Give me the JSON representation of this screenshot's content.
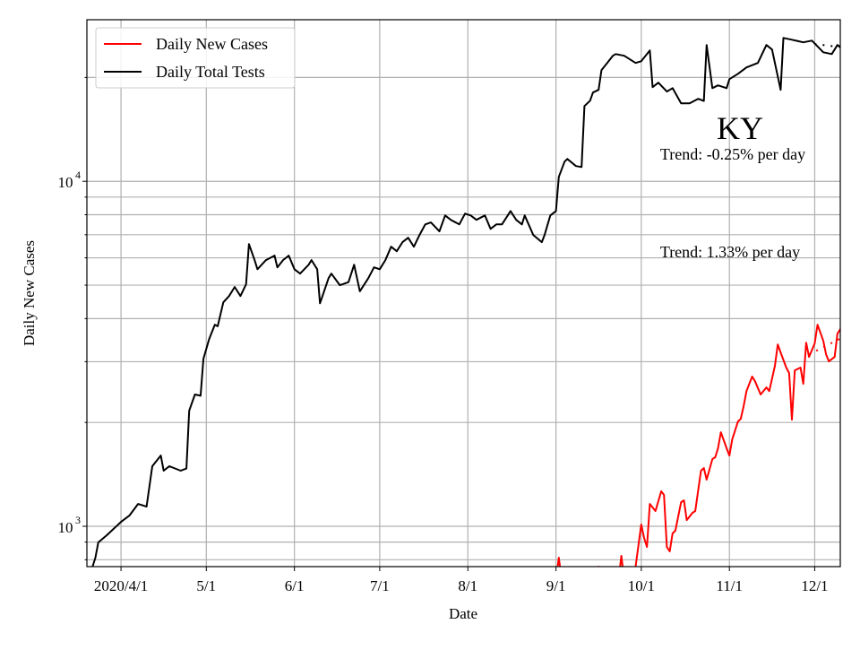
{
  "chart_data": {
    "type": "line",
    "title": "",
    "xlabel": "Date",
    "ylabel": "Daily New Cases",
    "yscale": "log",
    "xlim": [
      "2020-03-20",
      "2020-12-10"
    ],
    "ylim": [
      764,
      29400
    ],
    "grid": true,
    "legend_placement": "top-left",
    "x_ticks": [
      {
        "date": "2020-04-01",
        "label": "2020/4/1"
      },
      {
        "date": "2020-05-01",
        "label": "5/1"
      },
      {
        "date": "2020-06-01",
        "label": "6/1"
      },
      {
        "date": "2020-07-01",
        "label": "7/1"
      },
      {
        "date": "2020-08-01",
        "label": "8/1"
      },
      {
        "date": "2020-09-01",
        "label": "9/1"
      },
      {
        "date": "2020-10-01",
        "label": "10/1"
      },
      {
        "date": "2020-11-01",
        "label": "11/1"
      },
      {
        "date": "2020-12-01",
        "label": "12/1"
      }
    ],
    "y_major_ticks": [
      {
        "value": 1000,
        "base": "10",
        "exp": "3"
      },
      {
        "value": 10000,
        "base": "10",
        "exp": "4"
      }
    ],
    "y_minor_ticks": [
      800,
      900,
      2000,
      3000,
      4000,
      5000,
      6000,
      7000,
      8000,
      9000,
      20000
    ],
    "annotations": {
      "state": "KY",
      "trend_tests": "Trend: -0.25% per day",
      "trend_cases": "Trend: 1.33% per day"
    },
    "series": [
      {
        "name": "Daily New Cases",
        "color": "#ff0000",
        "points": [
          [
            "2020-09-01",
            700
          ],
          [
            "2020-09-02",
            811
          ],
          [
            "2020-09-03",
            700
          ],
          [
            "2020-09-15",
            700
          ],
          [
            "2020-09-16",
            764
          ],
          [
            "2020-09-17",
            700
          ],
          [
            "2020-09-23",
            700
          ],
          [
            "2020-09-24",
            821
          ],
          [
            "2020-09-25",
            700
          ],
          [
            "2020-09-28",
            700
          ],
          [
            "2020-09-29",
            764
          ],
          [
            "2020-10-01",
            1012
          ],
          [
            "2020-10-02",
            925
          ],
          [
            "2020-10-03",
            871
          ],
          [
            "2020-10-04",
            1161
          ],
          [
            "2020-10-06",
            1107
          ],
          [
            "2020-10-08",
            1263
          ],
          [
            "2020-10-09",
            1233
          ],
          [
            "2020-10-10",
            871
          ],
          [
            "2020-10-11",
            846
          ],
          [
            "2020-10-12",
            954
          ],
          [
            "2020-10-13",
            971
          ],
          [
            "2020-10-15",
            1175
          ],
          [
            "2020-10-16",
            1189
          ],
          [
            "2020-10-17",
            1042
          ],
          [
            "2020-10-19",
            1094
          ],
          [
            "2020-10-20",
            1107
          ],
          [
            "2020-10-22",
            1449
          ],
          [
            "2020-10-23",
            1475
          ],
          [
            "2020-10-24",
            1365
          ],
          [
            "2020-10-26",
            1566
          ],
          [
            "2020-10-27",
            1585
          ],
          [
            "2020-10-28",
            1683
          ],
          [
            "2020-10-29",
            1874
          ],
          [
            "2020-10-31",
            1683
          ],
          [
            "2020-11-01",
            1604
          ],
          [
            "2020-11-02",
            1786
          ],
          [
            "2020-11-03",
            1897
          ],
          [
            "2020-11-04",
            2013
          ],
          [
            "2020-11-05",
            2050
          ],
          [
            "2020-11-06",
            2228
          ],
          [
            "2020-11-07",
            2466
          ],
          [
            "2020-11-09",
            2716
          ],
          [
            "2020-11-10",
            2634
          ],
          [
            "2020-11-12",
            2410
          ],
          [
            "2020-11-14",
            2527
          ],
          [
            "2020-11-15",
            2466
          ],
          [
            "2020-11-17",
            2918
          ],
          [
            "2020-11-18",
            3366
          ],
          [
            "2020-11-19",
            3191
          ],
          [
            "2020-11-21",
            2884
          ],
          [
            "2020-11-22",
            2780
          ],
          [
            "2020-11-23",
            2037
          ],
          [
            "2020-11-24",
            2831
          ],
          [
            "2020-11-26",
            2884
          ],
          [
            "2020-11-27",
            2588
          ],
          [
            "2020-11-28",
            3407
          ],
          [
            "2020-11-29",
            3097
          ],
          [
            "2020-12-01",
            3387
          ],
          [
            "2020-12-02",
            3840
          ],
          [
            "2020-12-04",
            3450
          ],
          [
            "2020-12-05",
            3154
          ],
          [
            "2020-12-06",
            3006
          ],
          [
            "2020-12-08",
            3097
          ],
          [
            "2020-12-09",
            3616
          ],
          [
            "2020-12-11",
            3840
          ]
        ],
        "trend": [
          [
            "2020-11-29",
            3150
          ],
          [
            "2020-12-10",
            3500
          ]
        ]
      },
      {
        "name": "Daily Total Tests",
        "color": "#000000",
        "points": [
          [
            "2020-03-22",
            764
          ],
          [
            "2020-03-23",
            811
          ],
          [
            "2020-03-24",
            898
          ],
          [
            "2020-03-27",
            942
          ],
          [
            "2020-04-01",
            1030
          ],
          [
            "2020-04-04",
            1075
          ],
          [
            "2020-04-07",
            1161
          ],
          [
            "2020-04-10",
            1140
          ],
          [
            "2020-04-12",
            1493
          ],
          [
            "2020-04-15",
            1604
          ],
          [
            "2020-04-16",
            1449
          ],
          [
            "2020-04-18",
            1493
          ],
          [
            "2020-04-22",
            1449
          ],
          [
            "2020-04-24",
            1470
          ],
          [
            "2020-04-25",
            2163
          ],
          [
            "2020-04-27",
            2410
          ],
          [
            "2020-04-29",
            2390
          ],
          [
            "2020-04-30",
            3060
          ],
          [
            "2020-05-02",
            3490
          ],
          [
            "2020-05-04",
            3840
          ],
          [
            "2020-05-05",
            3800
          ],
          [
            "2020-05-07",
            4460
          ],
          [
            "2020-05-09",
            4650
          ],
          [
            "2020-05-11",
            4940
          ],
          [
            "2020-05-13",
            4650
          ],
          [
            "2020-05-15",
            5030
          ],
          [
            "2020-05-16",
            6580
          ],
          [
            "2020-05-18",
            5910
          ],
          [
            "2020-05-19",
            5560
          ],
          [
            "2020-05-22",
            5910
          ],
          [
            "2020-05-25",
            6090
          ],
          [
            "2020-05-26",
            5630
          ],
          [
            "2020-05-28",
            5910
          ],
          [
            "2020-05-30",
            6090
          ],
          [
            "2020-06-01",
            5560
          ],
          [
            "2020-06-03",
            5400
          ],
          [
            "2020-06-06",
            5730
          ],
          [
            "2020-06-07",
            5910
          ],
          [
            "2020-06-09",
            5560
          ],
          [
            "2020-06-10",
            4430
          ],
          [
            "2020-06-13",
            5240
          ],
          [
            "2020-06-14",
            5400
          ],
          [
            "2020-06-17",
            5000
          ],
          [
            "2020-06-20",
            5100
          ],
          [
            "2020-06-22",
            5730
          ],
          [
            "2020-06-24",
            4800
          ],
          [
            "2020-06-27",
            5240
          ],
          [
            "2020-06-29",
            5630
          ],
          [
            "2020-07-01",
            5560
          ],
          [
            "2020-07-03",
            5910
          ],
          [
            "2020-07-05",
            6460
          ],
          [
            "2020-07-07",
            6270
          ],
          [
            "2020-07-09",
            6660
          ],
          [
            "2020-07-11",
            6860
          ],
          [
            "2020-07-13",
            6460
          ],
          [
            "2020-07-15",
            6990
          ],
          [
            "2020-07-17",
            7500
          ],
          [
            "2020-07-19",
            7600
          ],
          [
            "2020-07-22",
            7160
          ],
          [
            "2020-07-24",
            7960
          ],
          [
            "2020-07-26",
            7730
          ],
          [
            "2020-07-29",
            7500
          ],
          [
            "2020-07-31",
            8060
          ],
          [
            "2020-08-02",
            7960
          ],
          [
            "2020-08-04",
            7730
          ],
          [
            "2020-08-07",
            7960
          ],
          [
            "2020-08-09",
            7280
          ],
          [
            "2020-08-11",
            7500
          ],
          [
            "2020-08-13",
            7500
          ],
          [
            "2020-08-16",
            8200
          ],
          [
            "2020-08-18",
            7730
          ],
          [
            "2020-08-20",
            7500
          ],
          [
            "2020-08-21",
            7960
          ],
          [
            "2020-08-24",
            6990
          ],
          [
            "2020-08-27",
            6660
          ],
          [
            "2020-08-28",
            6990
          ],
          [
            "2020-08-30",
            7960
          ],
          [
            "2020-09-01",
            8200
          ],
          [
            "2020-09-02",
            10300
          ],
          [
            "2020-09-04",
            11400
          ],
          [
            "2020-09-05",
            11610
          ],
          [
            "2020-09-08",
            11070
          ],
          [
            "2020-09-10",
            11000
          ],
          [
            "2020-09-11",
            16520
          ],
          [
            "2020-09-13",
            17130
          ],
          [
            "2020-09-14",
            18080
          ],
          [
            "2020-09-16",
            18410
          ],
          [
            "2020-09-17",
            20990
          ],
          [
            "2020-09-19",
            22030
          ],
          [
            "2020-09-21",
            23110
          ],
          [
            "2020-09-22",
            23380
          ],
          [
            "2020-09-25",
            23110
          ],
          [
            "2020-09-29",
            22030
          ],
          [
            "2020-10-01",
            22290
          ],
          [
            "2020-10-04",
            23940
          ],
          [
            "2020-10-05",
            18750
          ],
          [
            "2020-10-07",
            19320
          ],
          [
            "2020-10-10",
            18200
          ],
          [
            "2020-10-12",
            18620
          ],
          [
            "2020-10-15",
            16830
          ],
          [
            "2020-10-18",
            16830
          ],
          [
            "2020-10-21",
            17340
          ],
          [
            "2020-10-23",
            17100
          ],
          [
            "2020-10-24",
            24830
          ],
          [
            "2020-10-26",
            18620
          ],
          [
            "2020-10-28",
            18970
          ],
          [
            "2020-10-31",
            18620
          ],
          [
            "2020-11-01",
            19770
          ],
          [
            "2020-11-04",
            20500
          ],
          [
            "2020-11-07",
            21380
          ],
          [
            "2020-11-11",
            22030
          ],
          [
            "2020-11-14",
            24830
          ],
          [
            "2020-11-16",
            24100
          ],
          [
            "2020-11-19",
            18410
          ],
          [
            "2020-11-20",
            26040
          ],
          [
            "2020-11-23",
            25720
          ],
          [
            "2020-11-27",
            25290
          ],
          [
            "2020-11-30",
            25570
          ],
          [
            "2020-12-04",
            23660
          ],
          [
            "2020-12-07",
            23380
          ],
          [
            "2020-12-09",
            24830
          ],
          [
            "2020-12-10",
            24530
          ]
        ],
        "trend": [
          [
            "2020-12-01",
            25000
          ],
          [
            "2020-12-10",
            24500
          ]
        ]
      }
    ]
  }
}
